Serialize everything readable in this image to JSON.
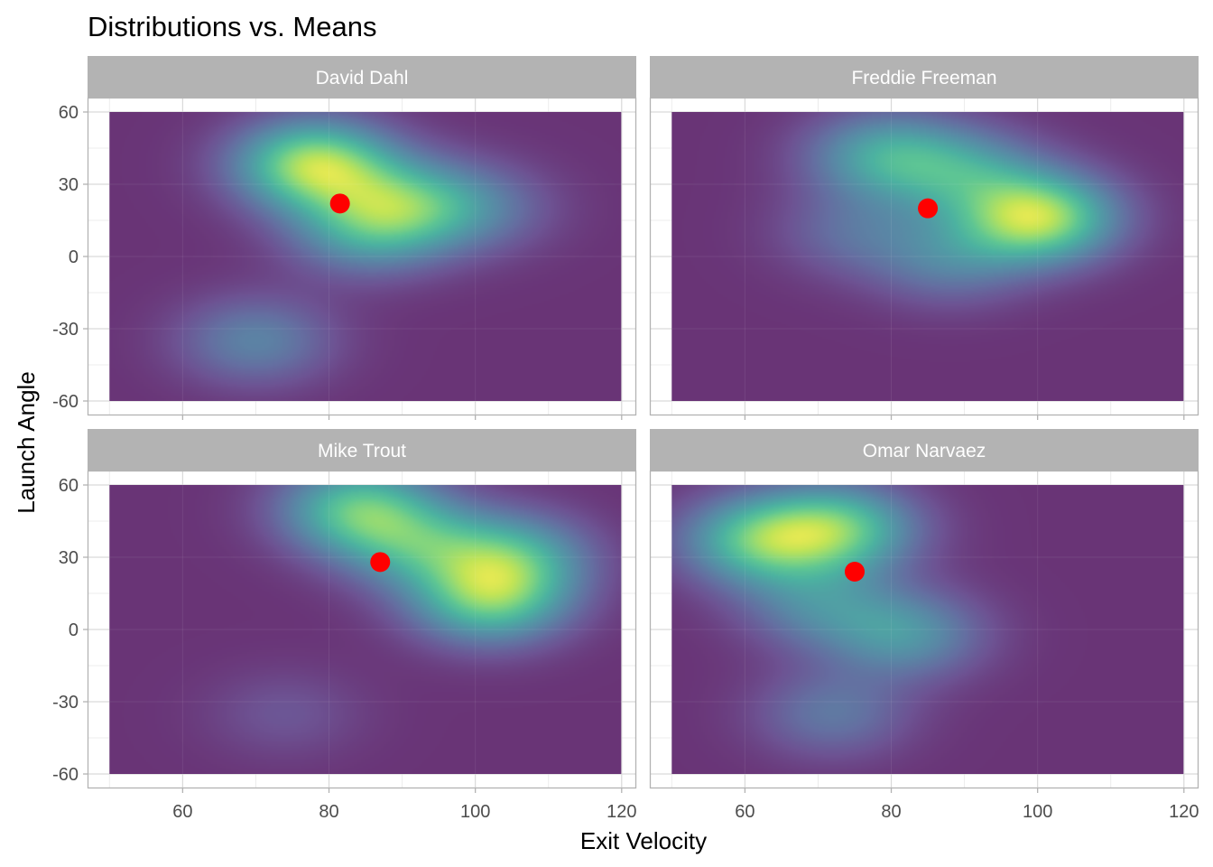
{
  "title": "Distributions vs. Means",
  "xlabel": "Exit Velocity",
  "ylabel": "Launch Angle",
  "colors": {
    "strip": "#b3b3b3",
    "strip_text": "#ffffff",
    "grid_major": "#d9d9d9",
    "grid_minor": "#ececec",
    "panel_border": "#b3b3b3",
    "mean_point": "#ff0000",
    "viridis": [
      "#440154",
      "#482878",
      "#3e4a89",
      "#31688e",
      "#26828e",
      "#1f9e89",
      "#35b779",
      "#6ece58",
      "#b5de2b",
      "#fde725"
    ]
  },
  "chart_data": {
    "type": "heatmap",
    "description_type": "2d-density-facets",
    "xlim": [
      47,
      122
    ],
    "ylim": [
      -66,
      66
    ],
    "density_x_range": [
      50,
      120
    ],
    "density_y_range": [
      -60,
      60
    ],
    "x_ticks": [
      60,
      80,
      100,
      120
    ],
    "y_ticks": [
      -60,
      -30,
      0,
      30,
      60
    ],
    "grid": true,
    "facets": [
      {
        "name": "David Dahl",
        "mean": {
          "x": 81.5,
          "y": 22
        },
        "density_peaks": [
          {
            "x": 78,
            "y": 38,
            "weight": 1.0
          },
          {
            "x": 90,
            "y": 22,
            "weight": 0.55
          },
          {
            "x": 85,
            "y": 10,
            "weight": 0.45
          },
          {
            "x": 70,
            "y": -35,
            "weight": 0.38
          },
          {
            "x": 100,
            "y": 20,
            "weight": 0.3
          }
        ]
      },
      {
        "name": "Freddie Freeman",
        "mean": {
          "x": 85,
          "y": 20
        },
        "density_peaks": [
          {
            "x": 100,
            "y": 16,
            "weight": 1.0
          },
          {
            "x": 79,
            "y": 42,
            "weight": 0.55
          },
          {
            "x": 90,
            "y": 35,
            "weight": 0.45
          },
          {
            "x": 88,
            "y": -2,
            "weight": 0.32
          },
          {
            "x": 75,
            "y": 10,
            "weight": 0.25
          }
        ]
      },
      {
        "name": "Mike Trout",
        "mean": {
          "x": 87,
          "y": 28
        },
        "density_peaks": [
          {
            "x": 84,
            "y": 50,
            "weight": 0.75
          },
          {
            "x": 102,
            "y": 12,
            "weight": 0.75
          },
          {
            "x": 105,
            "y": 30,
            "weight": 0.6
          },
          {
            "x": 92,
            "y": 35,
            "weight": 0.5
          },
          {
            "x": 74,
            "y": -35,
            "weight": 0.15
          }
        ]
      },
      {
        "name": "Omar Narvaez",
        "mean": {
          "x": 75,
          "y": 24
        },
        "density_peaks": [
          {
            "x": 62,
            "y": 37,
            "weight": 0.7
          },
          {
            "x": 73,
            "y": 42,
            "weight": 0.7
          },
          {
            "x": 82,
            "y": -2,
            "weight": 0.45
          },
          {
            "x": 70,
            "y": 10,
            "weight": 0.35
          },
          {
            "x": 72,
            "y": -35,
            "weight": 0.3
          }
        ]
      }
    ]
  }
}
